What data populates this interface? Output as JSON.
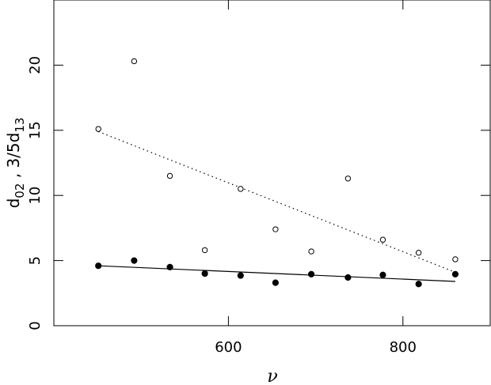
{
  "chart_data": {
    "type": "scatter",
    "xlabel": "ν",
    "ylabel": {
      "base1": "d",
      "sub1": "02",
      "mid": " , 3/5d",
      "sub2": "13"
    },
    "xlim": [
      400,
      900
    ],
    "ylim": [
      0,
      25
    ],
    "xticks": [
      600,
      800
    ],
    "xtick_labels": [
      "600",
      "800"
    ],
    "yticks": [
      0,
      5,
      10,
      15,
      20
    ],
    "ytick_labels": [
      "0",
      "5",
      "10",
      "15",
      "20"
    ],
    "grid": false,
    "series": [
      {
        "marker": "filled-circle",
        "x": [
          451,
          492,
          533,
          573,
          614,
          654,
          695,
          737,
          777,
          818,
          860
        ],
        "y": [
          4.6,
          5.0,
          4.5,
          4.0,
          3.85,
          3.3,
          3.95,
          3.7,
          3.9,
          3.2,
          3.95
        ]
      },
      {
        "marker": "open-circle",
        "x": [
          451,
          492,
          533,
          573,
          614,
          654,
          695,
          737,
          777,
          818,
          860
        ],
        "y": [
          15.1,
          20.3,
          11.5,
          5.8,
          10.5,
          7.4,
          5.7,
          11.3,
          6.6,
          5.6,
          5.1
        ]
      }
    ],
    "fit_lines": [
      {
        "style": "solid",
        "x": [
          451,
          860
        ],
        "y": [
          4.6,
          3.4
        ]
      },
      {
        "style": "dotted",
        "x": [
          451,
          860
        ],
        "y": [
          14.9,
          4.1
        ]
      }
    ]
  }
}
